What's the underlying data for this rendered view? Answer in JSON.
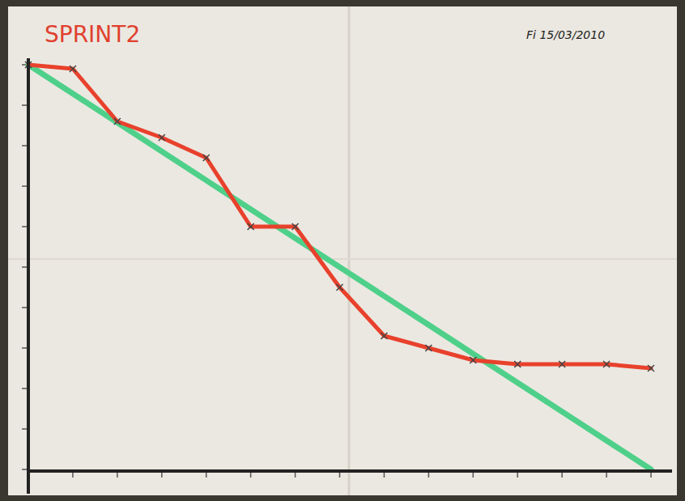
{
  "chart_data": {
    "type": "line",
    "title": "SPRINT2",
    "subtitle": "Fi 15/03/2010",
    "x": [
      0,
      1,
      2,
      3,
      4,
      5,
      6,
      7,
      8,
      9,
      10,
      11,
      12,
      13,
      14
    ],
    "series": [
      {
        "color": "#4fd08a",
        "x": [
          0,
          14
        ],
        "values": [
          100,
          0
        ],
        "marker": "none",
        "line_style": "solid"
      },
      {
        "color": "#e8412c",
        "values": [
          100,
          99,
          86,
          82,
          77,
          60,
          60,
          45,
          33,
          30,
          27,
          26,
          26,
          26,
          25
        ],
        "marker": "x",
        "line_style": "solid"
      }
    ],
    "xlim": [
      0,
      14
    ],
    "ylim": [
      0,
      100
    ],
    "xticks": [
      0,
      1,
      2,
      3,
      4,
      5,
      6,
      7,
      8,
      9,
      10,
      11,
      12,
      13,
      14
    ],
    "yticks": [
      0,
      10,
      20,
      30,
      40,
      50,
      60,
      70,
      80,
      90,
      100
    ],
    "tick_labels": false,
    "grid": false
  }
}
